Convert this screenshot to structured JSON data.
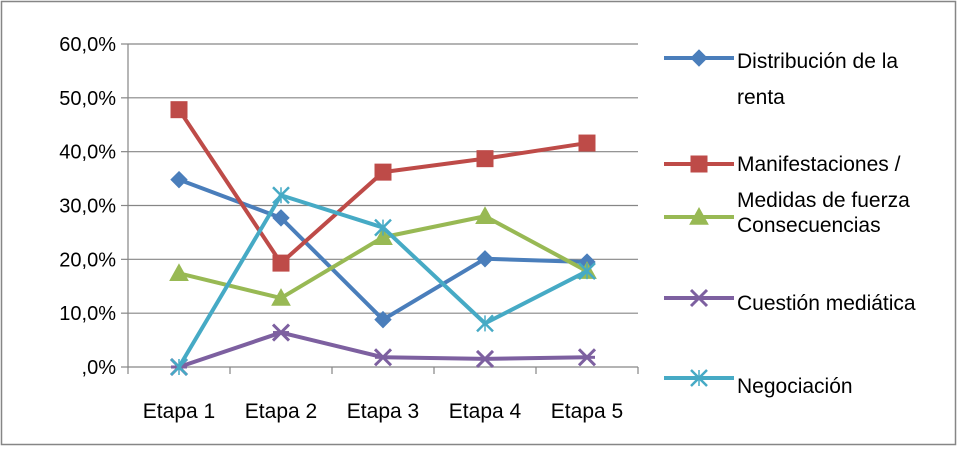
{
  "chart_data": {
    "type": "line",
    "categories": [
      "Etapa 1",
      "Etapa 2",
      "Etapa 3",
      "Etapa 4",
      "Etapa 5"
    ],
    "ylim": [
      0,
      60
    ],
    "yticks": [
      0,
      10,
      20,
      30,
      40,
      50,
      60
    ],
    "ytick_labels": [
      ",0%",
      "10,0%",
      "20,0%",
      "30,0%",
      "40,0%",
      "50,0%",
      "60,0%"
    ],
    "grid": true,
    "legend_position": "right",
    "series": [
      {
        "name": "Distribución de la renta",
        "legend_lines": [
          "Distribución de la",
          "renta"
        ],
        "values": [
          34.8,
          27.7,
          8.8,
          20.1,
          19.5
        ],
        "color": "#4A7EBB",
        "marker": "diamond"
      },
      {
        "name": "Manifestaciones / Medidas de fuerza",
        "legend_lines": [
          "Manifestaciones /",
          "Medidas de fuerza"
        ],
        "values": [
          47.8,
          19.3,
          36.2,
          38.7,
          41.6
        ],
        "color": "#BE4B48",
        "marker": "square"
      },
      {
        "name": "Consecuencias",
        "legend_lines": [
          "Consecuencias"
        ],
        "values": [
          17.4,
          12.8,
          24.1,
          28.0,
          17.8
        ],
        "color": "#98B954",
        "marker": "triangle"
      },
      {
        "name": "Cuestión mediática",
        "legend_lines": [
          "Cuestión mediática"
        ],
        "values": [
          0.0,
          6.4,
          1.8,
          1.5,
          1.8
        ],
        "color": "#7D60A0",
        "marker": "star"
      },
      {
        "name": "Negociación",
        "legend_lines": [
          "Negociación"
        ],
        "values": [
          0.0,
          31.9,
          25.9,
          8.1,
          17.8
        ],
        "color": "#46AAC5",
        "marker": "x"
      }
    ]
  }
}
